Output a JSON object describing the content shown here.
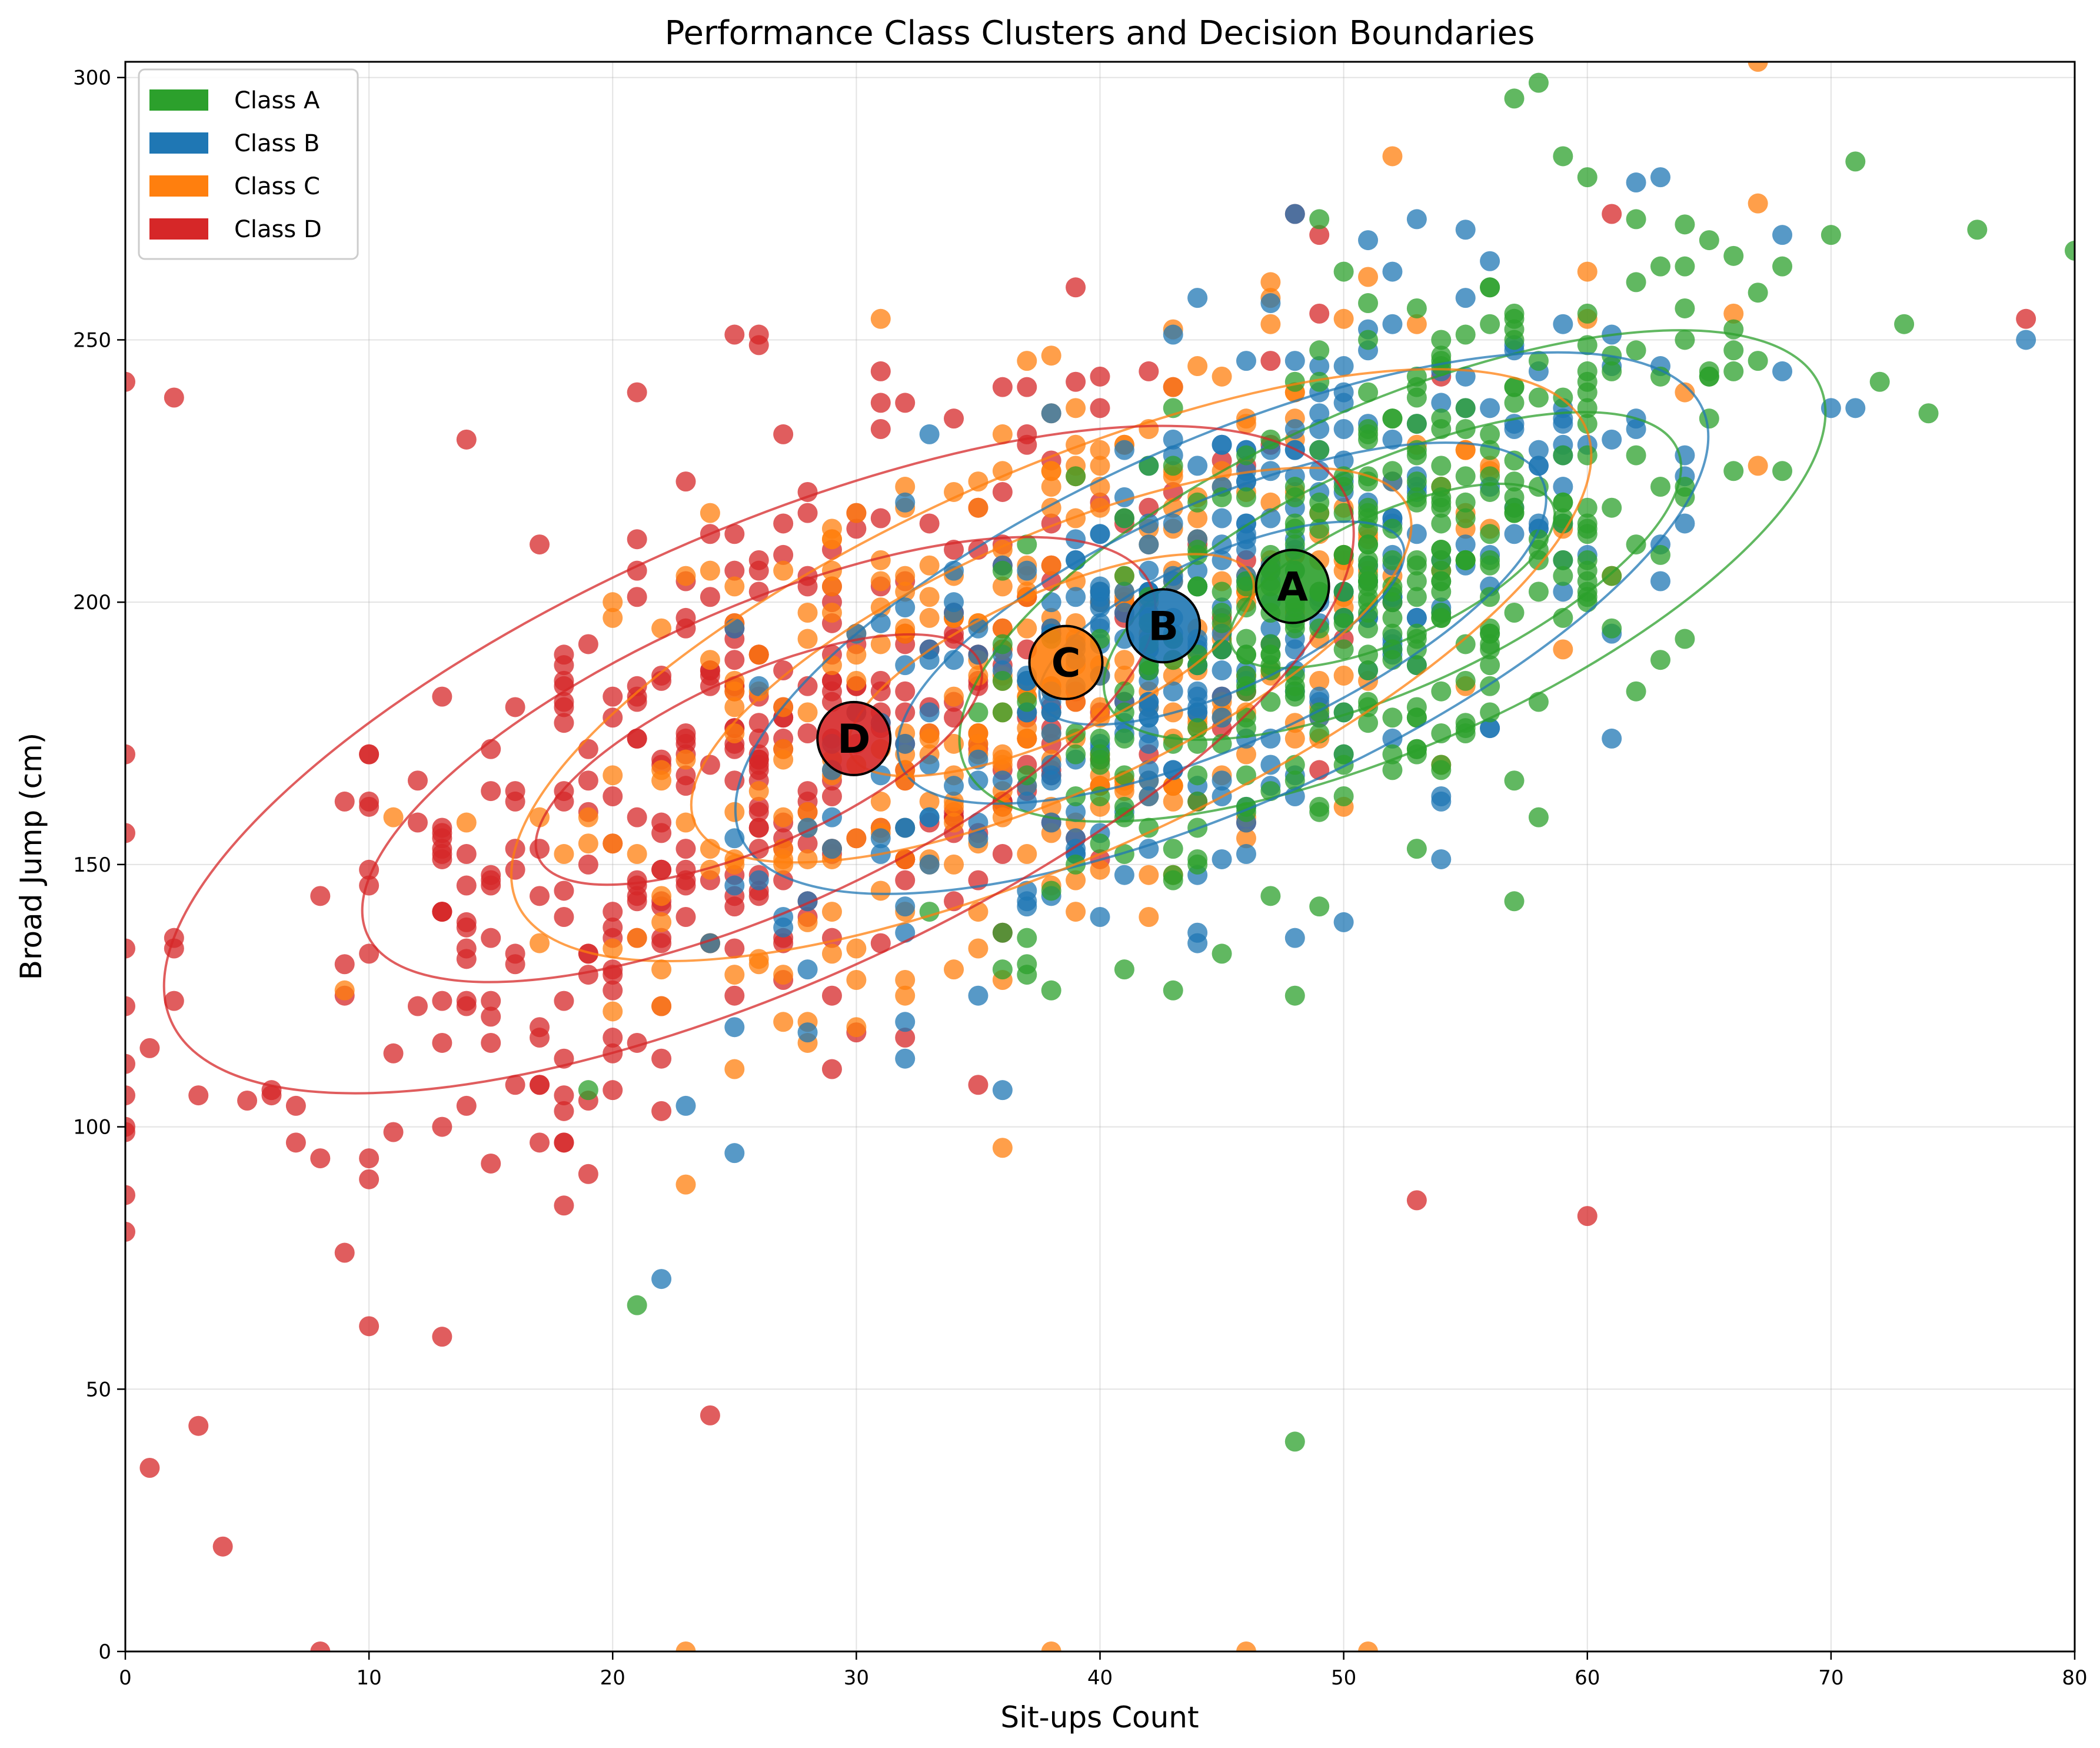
{
  "chart_data": {
    "type": "scatter",
    "title": "Performance Class Clusters and Decision Boundaries",
    "xlabel": "Sit-ups Count",
    "ylabel": "Broad Jump (cm)",
    "xlim": [
      0,
      80
    ],
    "ylim": [
      0,
      303
    ],
    "xticks": [
      0,
      10,
      20,
      30,
      40,
      50,
      60,
      70,
      80
    ],
    "yticks": [
      0,
      50,
      100,
      150,
      200,
      250,
      300
    ],
    "grid": true,
    "legend_position": "top-left",
    "series": [
      {
        "name": "Class A",
        "color": "#2ca02c",
        "centroid_label": "A",
        "centroid": [
          47.9,
          203
        ],
        "points_summary": {
          "x_mean": 52,
          "x_sd": 8,
          "y_mean": 205,
          "y_sd": 30
        }
      },
      {
        "name": "Class B",
        "color": "#1f77b4",
        "centroid_label": "B",
        "centroid": [
          42.6,
          195.5
        ],
        "points_summary": {
          "x_mean": 45,
          "x_sd": 9,
          "y_mean": 196,
          "y_sd": 32
        }
      },
      {
        "name": "Class C",
        "color": "#ff7f0e",
        "centroid_label": "C",
        "centroid": [
          38.6,
          188.5
        ],
        "points_summary": {
          "x_mean": 38,
          "x_sd": 10,
          "y_mean": 188,
          "y_sd": 34
        }
      },
      {
        "name": "Class D",
        "color": "#d62728",
        "centroid_label": "D",
        "centroid": [
          29.9,
          174
        ],
        "points_summary": {
          "x_mean": 26,
          "x_sd": 11,
          "y_mean": 170,
          "y_sd": 40
        }
      }
    ],
    "outliers": [
      {
        "x": 2,
        "y": 239,
        "series": "Class D"
      },
      {
        "x": 0,
        "y": 242,
        "series": "Class D"
      },
      {
        "x": 4,
        "y": 20,
        "series": "Class D"
      },
      {
        "x": 1,
        "y": 35,
        "series": "Class D"
      },
      {
        "x": 3,
        "y": 43,
        "series": "Class D"
      },
      {
        "x": 8,
        "y": 0,
        "series": "Class D"
      },
      {
        "x": 48,
        "y": 40,
        "series": "Class A"
      },
      {
        "x": 58,
        "y": 299,
        "series": "Class A"
      },
      {
        "x": 67,
        "y": 303,
        "series": "Class C"
      },
      {
        "x": 80,
        "y": 267,
        "series": "Class A"
      },
      {
        "x": 78,
        "y": 250,
        "series": "Class B"
      },
      {
        "x": 78,
        "y": 254,
        "series": "Class D"
      },
      {
        "x": 23,
        "y": 0,
        "series": "Class C"
      },
      {
        "x": 38,
        "y": 0,
        "series": "Class C"
      },
      {
        "x": 46,
        "y": 0,
        "series": "Class C"
      },
      {
        "x": 51,
        "y": 0,
        "series": "Class C"
      },
      {
        "x": 24,
        "y": 45,
        "series": "Class D"
      },
      {
        "x": 22,
        "y": 71,
        "series": "Class B"
      },
      {
        "x": 53,
        "y": 86,
        "series": "Class D"
      },
      {
        "x": 60,
        "y": 83,
        "series": "Class D"
      }
    ]
  }
}
